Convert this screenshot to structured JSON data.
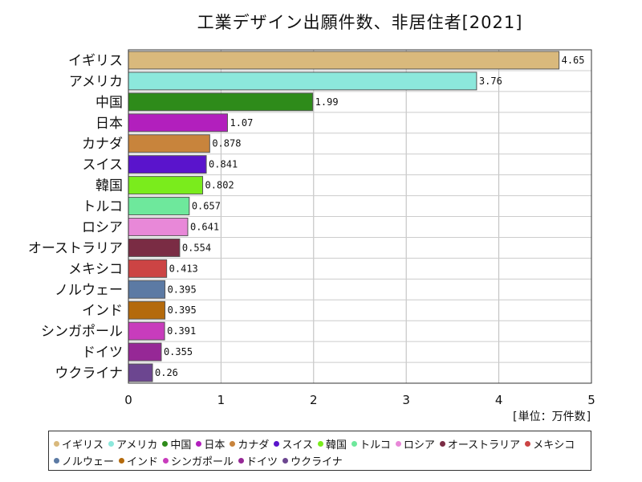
{
  "chart_data": {
    "type": "bar",
    "orientation": "horizontal",
    "title": "工業デザイン出願件数、非居住者[2021]",
    "unit_label": "[単位：万件数]",
    "xlim": [
      0,
      5
    ],
    "xticks": [
      0,
      1,
      2,
      3,
      4,
      5
    ],
    "grid": true,
    "legend_position": "bottom",
    "categories": [
      "イギリス",
      "アメリカ",
      "中国",
      "日本",
      "カナダ",
      "スイス",
      "韓国",
      "トルコ",
      "ロシア",
      "オーストラリア",
      "メキシコ",
      "ノルウェー",
      "インド",
      "シンガポール",
      "ドイツ",
      "ウクライナ"
    ],
    "values": [
      4.65,
      3.76,
      1.99,
      1.07,
      0.878,
      0.841,
      0.802,
      0.657,
      0.641,
      0.554,
      0.413,
      0.395,
      0.395,
      0.391,
      0.355,
      0.26
    ],
    "value_labels": [
      "4.65",
      "3.76",
      "1.99",
      "1.07",
      "0.878",
      "0.841",
      "0.802",
      "0.657",
      "0.641",
      "0.554",
      "0.413",
      "0.395",
      "0.395",
      "0.391",
      "0.355",
      "0.26"
    ],
    "colors": [
      "#d9b97c",
      "#8ce8dc",
      "#2e8b1a",
      "#b21fbd",
      "#c8843c",
      "#5a14cc",
      "#7aec1c",
      "#6ee89c",
      "#e888d8",
      "#7a2c44",
      "#cc4444",
      "#5c7aa4",
      "#b46a0c",
      "#c83cbc",
      "#962896",
      "#6c4690"
    ]
  }
}
